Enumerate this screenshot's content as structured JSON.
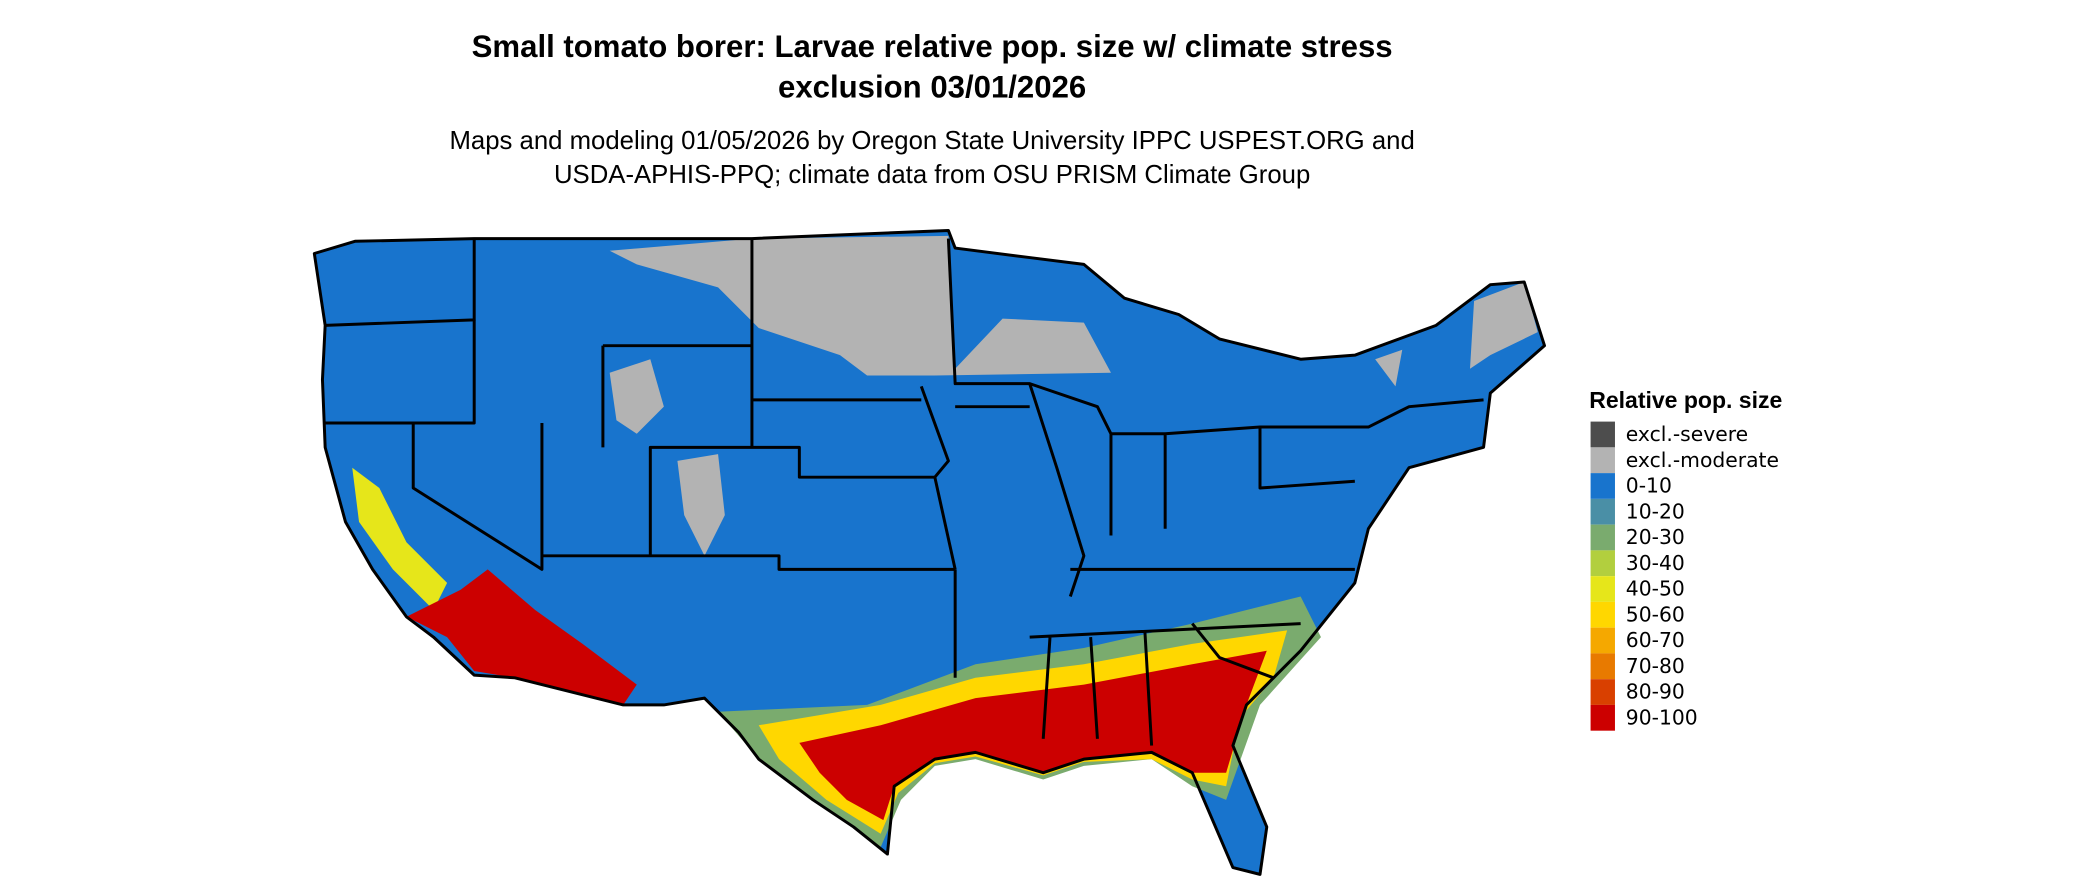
{
  "header": {
    "title_lines": [
      "Small tomato borer: Larvae relative pop. size w/ climate stress",
      "exclusion 03/01/2026"
    ],
    "subtitle_lines": [
      "Maps and modeling 01/05/2026 by Oregon State University IPPC USPEST.ORG and",
      "USDA-APHIS-PPQ; climate data from OSU PRISM Climate Group"
    ]
  },
  "legend": {
    "title": "Relative pop. size",
    "items": [
      {
        "label": "excl.-severe",
        "color": "#4d4d4d"
      },
      {
        "label": "excl.-moderate",
        "color": "#b3b3b3"
      },
      {
        "label": "0-10",
        "color": "#1874cd"
      },
      {
        "label": "10-20",
        "color": "#4a8fa6"
      },
      {
        "label": "20-30",
        "color": "#7aab6e"
      },
      {
        "label": "30-40",
        "color": "#b2cf3e"
      },
      {
        "label": "40-50",
        "color": "#e6e61a"
      },
      {
        "label": "50-60",
        "color": "#ffd700"
      },
      {
        "label": "60-70",
        "color": "#f5a800"
      },
      {
        "label": "70-80",
        "color": "#e87a00"
      },
      {
        "label": "80-90",
        "color": "#d94000"
      },
      {
        "label": "90-100",
        "color": "#cc0000"
      }
    ]
  }
}
